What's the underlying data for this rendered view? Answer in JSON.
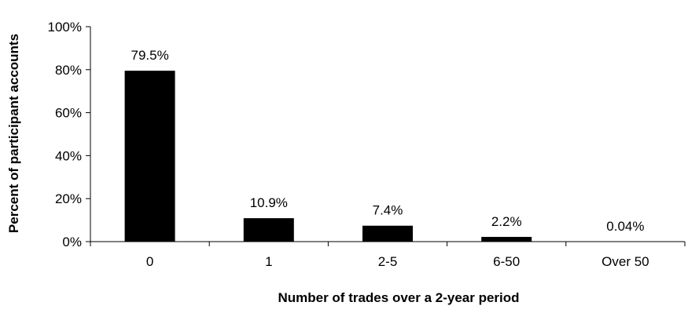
{
  "chart_data": {
    "type": "bar",
    "categories": [
      "0",
      "1",
      "2-5",
      "6-50",
      "Over 50"
    ],
    "values": [
      79.5,
      10.9,
      7.4,
      2.2,
      0.04
    ],
    "data_labels": [
      "79.5%",
      "10.9%",
      "7.4%",
      "2.2%",
      "0.04%"
    ],
    "xlabel": "Number of trades over a 2-year period",
    "ylabel": "Percent of participant accounts",
    "ylim": [
      0,
      100
    ],
    "yticks": [
      0,
      20,
      40,
      60,
      80,
      100
    ],
    "ytick_labels": [
      "0%",
      "20%",
      "40%",
      "60%",
      "80%",
      "100%"
    ],
    "grid": false,
    "legend": "none",
    "bar_color": "#000000"
  }
}
